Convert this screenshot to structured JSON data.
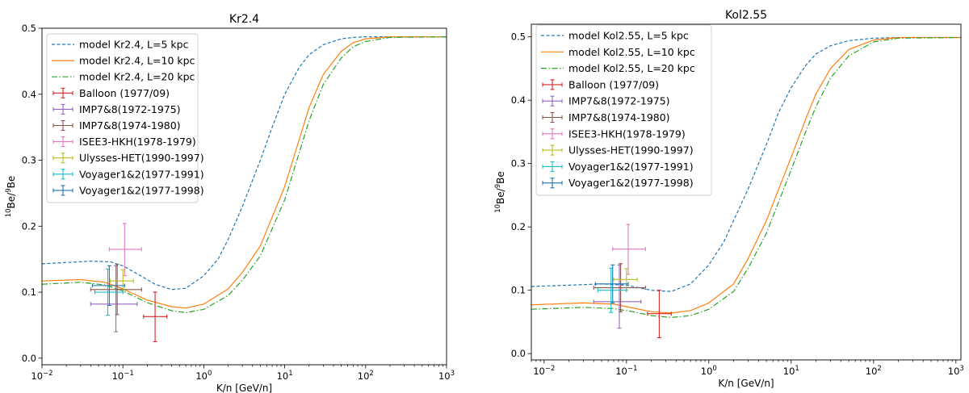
{
  "chart_data": [
    {
      "type": "line",
      "title": "Kr2.4",
      "xlabel": "K/n [GeV/n]",
      "ylabel": "10Be/9Be",
      "ylabel_parts": {
        "sup1": "10",
        "base1": "Be/",
        "sup2": "9",
        "base2": "Be"
      },
      "xscale": "log",
      "xlim": [
        0.01,
        1000
      ],
      "ylim": [
        -0.01,
        0.5
      ],
      "x_ticks": [
        {
          "value": 0.01,
          "base": "10",
          "exp": "−2"
        },
        {
          "value": 0.1,
          "base": "10",
          "exp": "−1"
        },
        {
          "value": 1,
          "base": "10",
          "exp": "0"
        },
        {
          "value": 10,
          "base": "10",
          "exp": "1"
        },
        {
          "value": 100,
          "base": "10",
          "exp": "2"
        },
        {
          "value": 1000,
          "base": "10",
          "exp": "3"
        }
      ],
      "y_ticks": [
        {
          "value": 0.0,
          "label": "0.0"
        },
        {
          "value": 0.1,
          "label": "0.1"
        },
        {
          "value": 0.2,
          "label": "0.2"
        },
        {
          "value": 0.3,
          "label": "0.3"
        },
        {
          "value": 0.4,
          "label": "0.4"
        },
        {
          "value": 0.5,
          "label": "0.5"
        }
      ],
      "legend_position": "top-left",
      "series": [
        {
          "name": "model Kr2.4, L=5 kpc",
          "color": "#1f77b4",
          "dash": "dashed",
          "x": [
            0.01,
            0.02,
            0.04,
            0.07,
            0.1,
            0.15,
            0.25,
            0.4,
            0.6,
            1,
            1.5,
            2,
            3,
            5,
            7,
            10,
            15,
            20,
            30,
            50,
            70,
            100,
            200,
            1000
          ],
          "y": [
            0.143,
            0.145,
            0.147,
            0.146,
            0.14,
            0.128,
            0.112,
            0.104,
            0.106,
            0.125,
            0.15,
            0.18,
            0.23,
            0.3,
            0.35,
            0.4,
            0.44,
            0.46,
            0.475,
            0.484,
            0.486,
            0.487,
            0.487,
            0.487
          ]
        },
        {
          "name": "model Kr2.4, L=10 kpc",
          "color": "#ff7f0e",
          "dash": "solid",
          "x": [
            0.01,
            0.03,
            0.06,
            0.1,
            0.2,
            0.4,
            0.6,
            1,
            2,
            3,
            5,
            10,
            15,
            20,
            30,
            50,
            70,
            100,
            200,
            1000
          ],
          "y": [
            0.117,
            0.119,
            0.115,
            0.105,
            0.088,
            0.078,
            0.076,
            0.082,
            0.105,
            0.13,
            0.17,
            0.26,
            0.33,
            0.38,
            0.43,
            0.465,
            0.478,
            0.484,
            0.487,
            0.487
          ]
        },
        {
          "name": "model Kr2.4, L=20 kpc",
          "color": "#2ca02c",
          "dash": "dashdot",
          "x": [
            0.01,
            0.03,
            0.06,
            0.1,
            0.2,
            0.4,
            0.6,
            1,
            2,
            3,
            5,
            10,
            15,
            20,
            30,
            50,
            70,
            100,
            200,
            1000
          ],
          "y": [
            0.112,
            0.115,
            0.111,
            0.102,
            0.084,
            0.072,
            0.069,
            0.074,
            0.095,
            0.118,
            0.155,
            0.24,
            0.31,
            0.36,
            0.415,
            0.455,
            0.472,
            0.48,
            0.486,
            0.487
          ]
        }
      ],
      "datasets": [
        {
          "name": "Balloon (1977/09)",
          "color": "#d62728",
          "x": 0.25,
          "y": 0.063,
          "xerr": [
            0.18,
            0.35
          ],
          "yerr": [
            0.025,
            0.1
          ]
        },
        {
          "name": "IMP7&8(1972-1975)",
          "color": "#9467bd",
          "x": 0.082,
          "y": 0.082,
          "xerr": [
            0.04,
            0.15
          ],
          "yerr": [
            0.04,
            0.14
          ]
        },
        {
          "name": "IMP7&8(1974-1980)",
          "color": "#8c564b",
          "x": 0.085,
          "y": 0.104,
          "xerr": [
            0.04,
            0.17
          ],
          "yerr": [
            0.066,
            0.142
          ]
        },
        {
          "name": "ISEE3-HKH(1978-1979)",
          "color": "#e377c2",
          "x": 0.105,
          "y": 0.165,
          "xerr": [
            0.068,
            0.17
          ],
          "yerr": [
            0.125,
            0.204
          ]
        },
        {
          "name": "Ulysses-HET(1990-1997)",
          "color": "#bcbd22",
          "x": 0.1,
          "y": 0.117,
          "xerr": [
            0.07,
            0.135
          ],
          "yerr": [
            0.1,
            0.134
          ]
        },
        {
          "name": "Voyager1&2(1977-1991)",
          "color": "#17becf",
          "x": 0.065,
          "y": 0.1,
          "xerr": [
            0.045,
            0.1
          ],
          "yerr": [
            0.065,
            0.135
          ]
        },
        {
          "name": "Voyager1&2(1977-1998)",
          "color": "#1f77b4",
          "x": 0.068,
          "y": 0.11,
          "xerr": [
            0.042,
            0.105
          ],
          "yerr": [
            0.08,
            0.14
          ]
        }
      ]
    },
    {
      "type": "line",
      "title": "Kol2.55",
      "xlabel": "K/n [GeV/n]",
      "ylabel": "10Be/9Be",
      "ylabel_parts": {
        "sup1": "10",
        "base1": "Be/",
        "sup2": "9",
        "base2": "Be"
      },
      "xscale": "log",
      "xlim": [
        0.007,
        1150
      ],
      "ylim": [
        -0.01,
        0.52
      ],
      "x_ticks": [
        {
          "value": 0.01,
          "base": "10",
          "exp": "−2"
        },
        {
          "value": 0.1,
          "base": "10",
          "exp": "−1"
        },
        {
          "value": 1,
          "base": "10",
          "exp": "0"
        },
        {
          "value": 10,
          "base": "10",
          "exp": "1"
        },
        {
          "value": 100,
          "base": "10",
          "exp": "2"
        },
        {
          "value": 1000,
          "base": "10",
          "exp": "3"
        }
      ],
      "y_ticks": [
        {
          "value": 0.0,
          "label": "0.0"
        },
        {
          "value": 0.1,
          "label": "0.1"
        },
        {
          "value": 0.2,
          "label": "0.2"
        },
        {
          "value": 0.3,
          "label": "0.3"
        },
        {
          "value": 0.4,
          "label": "0.4"
        },
        {
          "value": 0.5,
          "label": "0.5"
        }
      ],
      "legend_position": "top-left",
      "series": [
        {
          "name": "model Kol2.55, L=5 kpc",
          "color": "#1f77b4",
          "dash": "dashed",
          "x": [
            0.007,
            0.02,
            0.05,
            0.1,
            0.2,
            0.35,
            0.6,
            1,
            1.5,
            2,
            3,
            5,
            7,
            10,
            15,
            20,
            30,
            50,
            100,
            200,
            1150
          ],
          "y": [
            0.106,
            0.108,
            0.11,
            0.108,
            0.1,
            0.098,
            0.11,
            0.14,
            0.175,
            0.21,
            0.26,
            0.33,
            0.38,
            0.42,
            0.455,
            0.473,
            0.486,
            0.494,
            0.498,
            0.499,
            0.499
          ]
        },
        {
          "name": "model Kol2.55, L=10 kpc",
          "color": "#ff7f0e",
          "dash": "solid",
          "x": [
            0.007,
            0.03,
            0.07,
            0.12,
            0.2,
            0.35,
            0.6,
            1,
            2,
            3,
            5,
            10,
            15,
            20,
            30,
            50,
            100,
            200,
            1150
          ],
          "y": [
            0.077,
            0.08,
            0.078,
            0.072,
            0.066,
            0.064,
            0.068,
            0.08,
            0.11,
            0.15,
            0.21,
            0.31,
            0.37,
            0.41,
            0.45,
            0.48,
            0.495,
            0.499,
            0.499
          ]
        },
        {
          "name": "model Kol2.55, L=20 kpc",
          "color": "#2ca02c",
          "dash": "dashdot",
          "x": [
            0.007,
            0.03,
            0.07,
            0.12,
            0.2,
            0.35,
            0.6,
            1,
            2,
            3,
            5,
            10,
            15,
            20,
            30,
            50,
            100,
            200,
            1150
          ],
          "y": [
            0.07,
            0.073,
            0.071,
            0.066,
            0.06,
            0.057,
            0.06,
            0.07,
            0.098,
            0.135,
            0.19,
            0.29,
            0.35,
            0.39,
            0.435,
            0.47,
            0.492,
            0.498,
            0.499
          ]
        }
      ],
      "datasets": [
        {
          "name": "Balloon (1977/09)",
          "color": "#d62728",
          "x": 0.25,
          "y": 0.063,
          "xerr": [
            0.18,
            0.35
          ],
          "yerr": [
            0.025,
            0.1
          ]
        },
        {
          "name": "IMP7&8(1972-1975)",
          "color": "#9467bd",
          "x": 0.082,
          "y": 0.082,
          "xerr": [
            0.04,
            0.15
          ],
          "yerr": [
            0.04,
            0.14
          ]
        },
        {
          "name": "IMP7&8(1974-1980)",
          "color": "#8c564b",
          "x": 0.085,
          "y": 0.104,
          "xerr": [
            0.04,
            0.17
          ],
          "yerr": [
            0.066,
            0.142
          ]
        },
        {
          "name": "ISEE3-HKH(1978-1979)",
          "color": "#e377c2",
          "x": 0.105,
          "y": 0.165,
          "xerr": [
            0.068,
            0.17
          ],
          "yerr": [
            0.125,
            0.204
          ]
        },
        {
          "name": "Ulysses-HET(1990-1997)",
          "color": "#bcbd22",
          "x": 0.1,
          "y": 0.117,
          "xerr": [
            0.07,
            0.135
          ],
          "yerr": [
            0.1,
            0.134
          ]
        },
        {
          "name": "Voyager1&2(1977-1991)",
          "color": "#17becf",
          "x": 0.065,
          "y": 0.1,
          "xerr": [
            0.045,
            0.1
          ],
          "yerr": [
            0.065,
            0.135
          ]
        },
        {
          "name": "Voyager1&2(1977-1998)",
          "color": "#1f77b4",
          "x": 0.068,
          "y": 0.11,
          "xerr": [
            0.042,
            0.105
          ],
          "yerr": [
            0.08,
            0.14
          ]
        }
      ]
    }
  ]
}
